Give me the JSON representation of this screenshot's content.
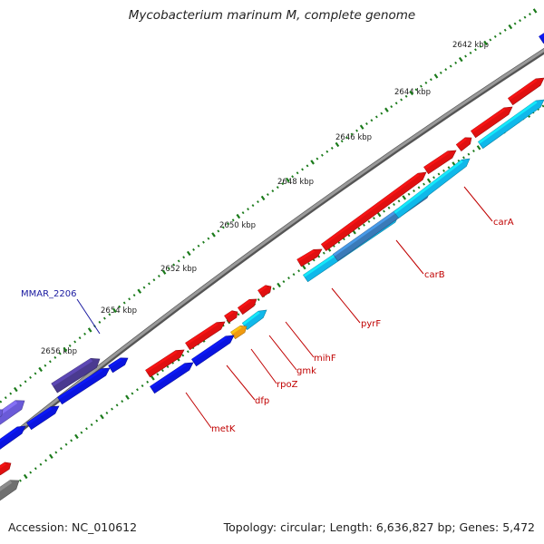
{
  "title": "Mycobacterium marinum M, complete genome",
  "footer": {
    "accession": "Accession: NC_010612",
    "summary": "Topology: circular; Length: 6,636,827 bp; Genes: 5,472"
  },
  "colors": {
    "backbone": "#808080",
    "ruler_dots": "#1a7a1a",
    "red_feature": "#e01010",
    "blue_feature": "#0a14e0",
    "light_blue_feature": "#10b8ea",
    "steel_blue_feature": "#3a7ab8",
    "purple_feature": "#6a5ad8",
    "dark_purple_feature": "#4a3a90",
    "orange_feature": "#f09a10",
    "gray_feature": "#707070",
    "red_label": "#c00000",
    "blue_label": "#1a1aa0"
  },
  "ruler": [
    {
      "label": "2642 kbp",
      "kbp": 2642
    },
    {
      "label": "2644 kbp",
      "kbp": 2644
    },
    {
      "label": "2646 kbp",
      "kbp": 2646
    },
    {
      "label": "2648 kbp",
      "kbp": 2648
    },
    {
      "label": "2650 kbp",
      "kbp": 2650
    },
    {
      "label": "2652 kbp",
      "kbp": 2652
    },
    {
      "label": "2654 kbp",
      "kbp": 2654
    },
    {
      "label": "2656 kbp",
      "kbp": 2656
    }
  ],
  "gene_labels": [
    {
      "name": "carA",
      "color": "red"
    },
    {
      "name": "carB",
      "color": "red"
    },
    {
      "name": "pyrF",
      "color": "red"
    },
    {
      "name": "mihF",
      "color": "red"
    },
    {
      "name": "gmk",
      "color": "red"
    },
    {
      "name": "rpoZ",
      "color": "red"
    },
    {
      "name": "dfp",
      "color": "red"
    },
    {
      "name": "metK",
      "color": "red"
    },
    {
      "name": "MMAR_2206",
      "color": "blue"
    }
  ]
}
